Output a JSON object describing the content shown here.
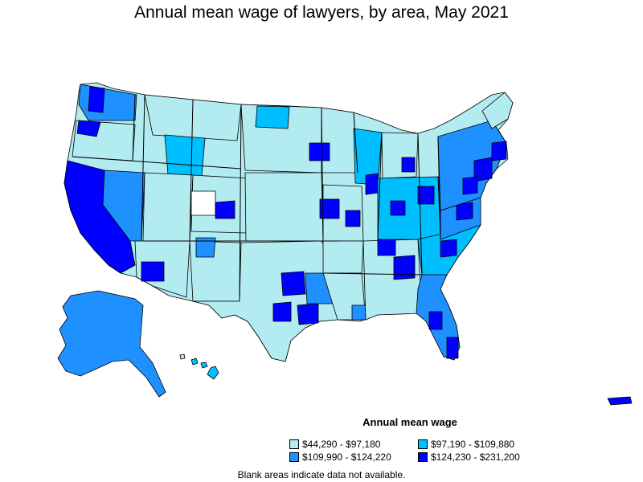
{
  "title": "Annual mean wage of lawyers, by area, May 2021",
  "legend": {
    "title": "Annual mean wage",
    "items": [
      {
        "label": "$44,290 - $97,180",
        "color": "#b2ebf0"
      },
      {
        "label": "$97,190 - $109,880",
        "color": "#00bfff"
      },
      {
        "label": "$109,990 - $124,220",
        "color": "#1e90ff"
      },
      {
        "label": "$124,230 - $231,200",
        "color": "#0000ff"
      }
    ]
  },
  "note": "Blank areas indicate data not available."
}
